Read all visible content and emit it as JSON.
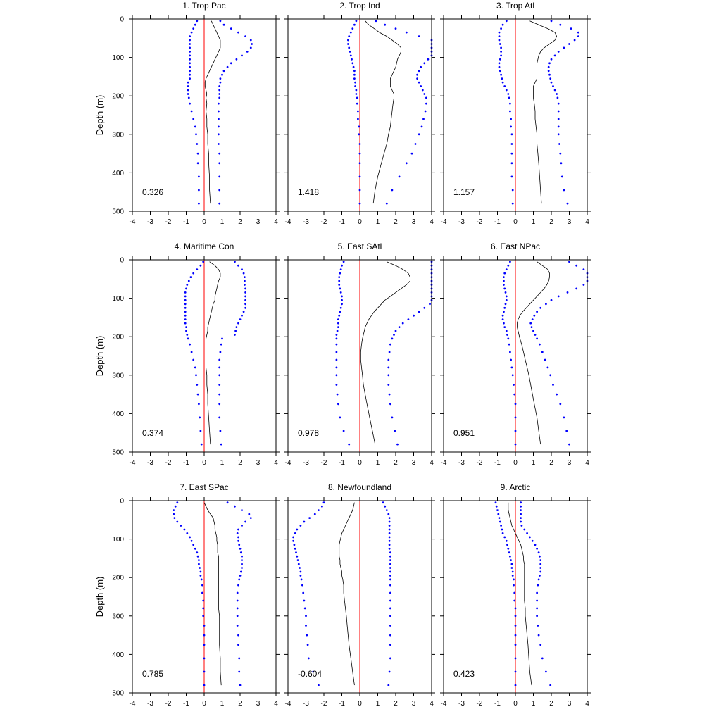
{
  "chart_data": {
    "type": "line",
    "shared": {
      "ylabel": "Depth (m)",
      "xlim": [
        -4,
        4
      ],
      "ylim": [
        0,
        500
      ],
      "y_inverted": true,
      "xticks": [
        -4,
        -3,
        -2,
        -1,
        0,
        1,
        2,
        3,
        4
      ],
      "yticks": [
        0,
        100,
        200,
        300,
        400,
        500
      ],
      "depths": [
        5,
        15,
        25,
        35,
        45,
        55,
        65,
        75,
        85,
        95,
        105,
        115,
        125,
        135,
        145,
        155,
        165,
        175,
        185,
        195,
        205,
        220,
        240,
        260,
        280,
        300,
        325,
        350,
        375,
        410,
        445,
        480
      ],
      "colors": {
        "mean": "#000000",
        "bound": "#0000ff",
        "zero_line": "#ff0000"
      },
      "grid": false
    },
    "panels": [
      {
        "title": "1. Trop Pac",
        "value_label": "0.326",
        "mean": [
          0.4,
          0.5,
          0.6,
          0.7,
          0.8,
          0.9,
          0.9,
          0.9,
          0.8,
          0.7,
          0.6,
          0.5,
          0.4,
          0.3,
          0.2,
          0.1,
          0.05,
          0.05,
          0.1,
          0.15,
          0.1,
          0.15,
          0.1,
          0.15,
          0.15,
          0.2,
          0.2,
          0.25,
          0.25,
          0.3,
          0.3,
          0.35
        ],
        "lower": [
          -0.4,
          -0.5,
          -0.6,
          -0.7,
          -0.8,
          -0.8,
          -0.8,
          -0.8,
          -0.8,
          -0.8,
          -0.8,
          -0.8,
          -0.8,
          -0.8,
          -0.8,
          -0.8,
          -0.9,
          -0.9,
          -0.9,
          -0.9,
          -0.85,
          -0.8,
          -0.7,
          -0.6,
          -0.5,
          -0.45,
          -0.4,
          -0.35,
          -0.35,
          -0.3,
          -0.3,
          -0.3
        ],
        "upper": [
          0.9,
          1.1,
          1.5,
          1.9,
          2.3,
          2.6,
          2.65,
          2.6,
          2.4,
          2.1,
          1.8,
          1.5,
          1.3,
          1.1,
          1.0,
          0.9,
          0.9,
          0.85,
          0.85,
          0.85,
          0.85,
          0.8,
          0.8,
          0.8,
          0.8,
          0.8,
          0.8,
          0.85,
          0.85,
          0.85,
          0.85,
          0.85
        ]
      },
      {
        "title": "2. Trop Ind",
        "value_label": "1.418",
        "mean": [
          0.3,
          0.5,
          0.8,
          1.1,
          1.5,
          1.8,
          2.1,
          2.3,
          2.3,
          2.2,
          2.1,
          2.05,
          2.0,
          1.9,
          1.8,
          1.7,
          1.7,
          1.7,
          1.8,
          1.9,
          1.9,
          1.85,
          1.8,
          1.75,
          1.7,
          1.6,
          1.5,
          1.35,
          1.2,
          1.0,
          0.85,
          0.75
        ],
        "lower": [
          -0.2,
          -0.3,
          -0.4,
          -0.5,
          -0.6,
          -0.65,
          -0.65,
          -0.6,
          -0.55,
          -0.5,
          -0.45,
          -0.4,
          -0.35,
          -0.3,
          -0.3,
          -0.3,
          -0.25,
          -0.25,
          -0.2,
          -0.2,
          -0.15,
          -0.15,
          -0.1,
          -0.1,
          -0.05,
          -0.05,
          0.0,
          0.0,
          0.0,
          0.0,
          0.0,
          0.0
        ],
        "upper": [
          0.9,
          1.4,
          2.0,
          2.6,
          3.3,
          4.0,
          4.0,
          4.0,
          4.0,
          4.0,
          3.8,
          3.6,
          3.4,
          3.3,
          3.2,
          3.2,
          3.3,
          3.4,
          3.5,
          3.6,
          3.7,
          3.7,
          3.65,
          3.55,
          3.45,
          3.3,
          3.1,
          2.9,
          2.6,
          2.2,
          1.8,
          1.5
        ]
      },
      {
        "title": "3. Trop Atl",
        "value_label": "1.157",
        "mean": [
          0.8,
          1.3,
          1.8,
          2.2,
          2.3,
          2.2,
          1.9,
          1.6,
          1.4,
          1.3,
          1.25,
          1.2,
          1.2,
          1.2,
          1.2,
          1.2,
          1.1,
          1.0,
          1.0,
          1.0,
          1.0,
          1.05,
          1.1,
          1.1,
          1.15,
          1.2,
          1.2,
          1.25,
          1.3,
          1.35,
          1.4,
          1.45
        ],
        "lower": [
          -0.5,
          -0.7,
          -0.8,
          -0.9,
          -0.9,
          -0.9,
          -0.85,
          -0.8,
          -0.8,
          -0.8,
          -0.85,
          -0.9,
          -0.9,
          -0.85,
          -0.8,
          -0.75,
          -0.7,
          -0.6,
          -0.5,
          -0.4,
          -0.35,
          -0.3,
          -0.3,
          -0.25,
          -0.25,
          -0.2,
          -0.2,
          -0.2,
          -0.2,
          -0.2,
          -0.15,
          -0.15
        ],
        "upper": [
          2.0,
          2.5,
          3.1,
          3.5,
          3.5,
          3.3,
          3.0,
          2.7,
          2.4,
          2.2,
          2.0,
          1.9,
          1.85,
          1.85,
          1.9,
          1.95,
          2.0,
          2.1,
          2.2,
          2.3,
          2.35,
          2.4,
          2.4,
          2.4,
          2.4,
          2.4,
          2.45,
          2.5,
          2.55,
          2.6,
          2.7,
          2.9
        ]
      },
      {
        "title": "4. Maritime Con",
        "value_label": "0.374",
        "mean": [
          0.3,
          0.6,
          0.8,
          0.9,
          0.9,
          0.8,
          0.75,
          0.7,
          0.65,
          0.6,
          0.6,
          0.5,
          0.45,
          0.4,
          0.35,
          0.3,
          0.25,
          0.2,
          0.2,
          0.15,
          0.1,
          0.1,
          0.1,
          0.1,
          0.1,
          0.15,
          0.15,
          0.2,
          0.2,
          0.25,
          0.3,
          0.35
        ],
        "lower": [
          -0.05,
          -0.2,
          -0.4,
          -0.6,
          -0.75,
          -0.85,
          -0.95,
          -1.0,
          -1.05,
          -1.05,
          -1.05,
          -1.05,
          -1.05,
          -1.05,
          -1.05,
          -1.05,
          -1.05,
          -1.0,
          -1.0,
          -0.95,
          -0.9,
          -0.8,
          -0.7,
          -0.6,
          -0.5,
          -0.45,
          -0.4,
          -0.35,
          -0.3,
          -0.25,
          -0.2,
          -0.15
        ],
        "upper": [
          1.7,
          1.9,
          2.1,
          2.2,
          2.25,
          2.25,
          2.25,
          2.3,
          2.3,
          2.3,
          2.3,
          2.3,
          2.3,
          2.2,
          2.1,
          2.0,
          1.9,
          1.8,
          1.75,
          1.7,
          1.0,
          0.95,
          0.9,
          0.85,
          0.85,
          0.85,
          0.85,
          0.85,
          0.85,
          0.85,
          0.9,
          0.95
        ]
      },
      {
        "title": "5. East SAtl",
        "value_label": "0.978",
        "mean": [
          1.5,
          2.0,
          2.4,
          2.7,
          2.8,
          2.8,
          2.6,
          2.3,
          2.0,
          1.7,
          1.4,
          1.2,
          1.0,
          0.8,
          0.65,
          0.5,
          0.4,
          0.3,
          0.25,
          0.2,
          0.15,
          0.1,
          0.05,
          0.05,
          0.1,
          0.15,
          0.2,
          0.3,
          0.4,
          0.55,
          0.7,
          0.85
        ],
        "lower": [
          -0.9,
          -1.0,
          -1.05,
          -1.1,
          -1.15,
          -1.15,
          -1.15,
          -1.1,
          -1.05,
          -1.0,
          -1.0,
          -1.0,
          -1.05,
          -1.1,
          -1.15,
          -1.2,
          -1.2,
          -1.2,
          -1.25,
          -1.3,
          -1.3,
          -1.3,
          -1.3,
          -1.3,
          -1.3,
          -1.3,
          -1.3,
          -1.25,
          -1.2,
          -1.1,
          -0.9,
          -0.6
        ],
        "upper": [
          4.0,
          4.0,
          4.0,
          4.0,
          4.0,
          4.0,
          4.0,
          4.0,
          4.0,
          4.0,
          4.0,
          3.9,
          3.6,
          3.3,
          3.0,
          2.7,
          2.4,
          2.2,
          2.0,
          1.9,
          1.8,
          1.7,
          1.65,
          1.6,
          1.6,
          1.6,
          1.6,
          1.65,
          1.7,
          1.8,
          1.95,
          2.1
        ]
      },
      {
        "title": "6. East NPac",
        "value_label": "0.951",
        "mean": [
          1.2,
          1.5,
          1.8,
          1.9,
          1.9,
          1.85,
          1.75,
          1.6,
          1.4,
          1.2,
          1.0,
          0.8,
          0.6,
          0.4,
          0.25,
          0.15,
          0.1,
          0.1,
          0.15,
          0.2,
          0.25,
          0.35,
          0.45,
          0.55,
          0.65,
          0.75,
          0.85,
          0.95,
          1.05,
          1.2,
          1.3,
          1.4
        ],
        "lower": [
          -0.3,
          -0.4,
          -0.5,
          -0.6,
          -0.65,
          -0.65,
          -0.65,
          -0.6,
          -0.55,
          -0.5,
          -0.5,
          -0.55,
          -0.6,
          -0.65,
          -0.7,
          -0.7,
          -0.65,
          -0.6,
          -0.5,
          -0.45,
          -0.4,
          -0.35,
          -0.3,
          -0.25,
          -0.2,
          -0.15,
          -0.1,
          -0.05,
          0.0,
          0.0,
          0.0,
          0.0
        ],
        "upper": [
          3.0,
          3.4,
          3.8,
          4.0,
          4.0,
          4.0,
          3.8,
          3.4,
          2.9,
          2.4,
          2.0,
          1.7,
          1.4,
          1.2,
          1.05,
          0.95,
          0.85,
          0.9,
          1.0,
          1.1,
          1.2,
          1.35,
          1.5,
          1.65,
          1.8,
          1.95,
          2.1,
          2.3,
          2.5,
          2.7,
          2.85,
          3.0
        ]
      },
      {
        "title": "7. East SPac",
        "value_label": "0.785",
        "mean": [
          0.0,
          0.1,
          0.2,
          0.35,
          0.5,
          0.55,
          0.6,
          0.6,
          0.65,
          0.7,
          0.7,
          0.75,
          0.75,
          0.75,
          0.8,
          0.8,
          0.8,
          0.8,
          0.8,
          0.8,
          0.8,
          0.8,
          0.8,
          0.8,
          0.8,
          0.85,
          0.85,
          0.85,
          0.85,
          0.9,
          0.9,
          0.95
        ],
        "lower": [
          -1.5,
          -1.6,
          -1.7,
          -1.7,
          -1.65,
          -1.5,
          -1.3,
          -1.1,
          -0.95,
          -0.8,
          -0.7,
          -0.6,
          -0.5,
          -0.4,
          -0.35,
          -0.3,
          -0.3,
          -0.25,
          -0.2,
          -0.2,
          -0.15,
          -0.1,
          -0.1,
          -0.05,
          -0.05,
          -0.05,
          0.0,
          0.0,
          0.0,
          0.0,
          0.0,
          0.0
        ],
        "upper": [
          1.3,
          1.7,
          2.1,
          2.5,
          2.6,
          2.3,
          2.1,
          1.9,
          1.85,
          1.9,
          1.9,
          1.95,
          2.0,
          2.05,
          2.1,
          2.1,
          2.1,
          2.1,
          2.05,
          2.0,
          1.95,
          1.9,
          1.85,
          1.85,
          1.85,
          1.85,
          1.85,
          1.9,
          1.9,
          1.95,
          1.95,
          2.0
        ]
      },
      {
        "title": "8. Newfoundland",
        "value_label": "-0.604",
        "mean": [
          -0.3,
          -0.35,
          -0.4,
          -0.5,
          -0.6,
          -0.7,
          -0.8,
          -0.9,
          -1.0,
          -1.05,
          -1.1,
          -1.15,
          -1.15,
          -1.15,
          -1.15,
          -1.1,
          -1.1,
          -1.05,
          -1.0,
          -1.0,
          -0.95,
          -0.9,
          -0.9,
          -0.85,
          -0.8,
          -0.75,
          -0.7,
          -0.65,
          -0.6,
          -0.5,
          -0.4,
          -0.3
        ],
        "lower": [
          -2.0,
          -2.1,
          -2.3,
          -2.5,
          -2.8,
          -3.1,
          -3.3,
          -3.5,
          -3.6,
          -3.7,
          -3.7,
          -3.65,
          -3.6,
          -3.55,
          -3.5,
          -3.45,
          -3.4,
          -3.35,
          -3.3,
          -3.3,
          -3.25,
          -3.2,
          -3.15,
          -3.1,
          -3.05,
          -3.0,
          -3.0,
          -2.95,
          -2.9,
          -2.85,
          -2.6,
          -2.3
        ],
        "upper": [
          1.3,
          1.4,
          1.5,
          1.6,
          1.65,
          1.65,
          1.65,
          1.65,
          1.65,
          1.65,
          1.65,
          1.65,
          1.65,
          1.7,
          1.7,
          1.7,
          1.7,
          1.7,
          1.7,
          1.7,
          1.7,
          1.7,
          1.7,
          1.7,
          1.7,
          1.7,
          1.7,
          1.7,
          1.7,
          1.7,
          1.65,
          1.6
        ]
      },
      {
        "title": "9. Arctic",
        "value_label": "0.423",
        "mean": [
          -0.4,
          -0.4,
          -0.4,
          -0.35,
          -0.3,
          -0.25,
          -0.2,
          -0.1,
          0.0,
          0.1,
          0.2,
          0.3,
          0.35,
          0.4,
          0.45,
          0.45,
          0.5,
          0.5,
          0.5,
          0.5,
          0.5,
          0.5,
          0.5,
          0.5,
          0.55,
          0.55,
          0.6,
          0.65,
          0.7,
          0.75,
          0.8,
          0.9
        ],
        "lower": [
          -1.1,
          -1.05,
          -1.0,
          -0.95,
          -0.9,
          -0.85,
          -0.8,
          -0.75,
          -0.7,
          -0.6,
          -0.5,
          -0.45,
          -0.4,
          -0.35,
          -0.3,
          -0.25,
          -0.2,
          -0.2,
          -0.15,
          -0.15,
          -0.1,
          -0.1,
          -0.05,
          -0.05,
          0.0,
          0.0,
          0.0,
          0.0,
          0.0,
          0.0,
          0.0,
          0.0
        ],
        "upper": [
          0.3,
          0.3,
          0.3,
          0.3,
          0.3,
          0.3,
          0.35,
          0.5,
          0.65,
          0.8,
          0.95,
          1.1,
          1.2,
          1.3,
          1.35,
          1.4,
          1.4,
          1.4,
          1.4,
          1.35,
          1.3,
          1.25,
          1.2,
          1.2,
          1.2,
          1.2,
          1.25,
          1.3,
          1.4,
          1.5,
          1.7,
          1.95
        ]
      }
    ]
  }
}
